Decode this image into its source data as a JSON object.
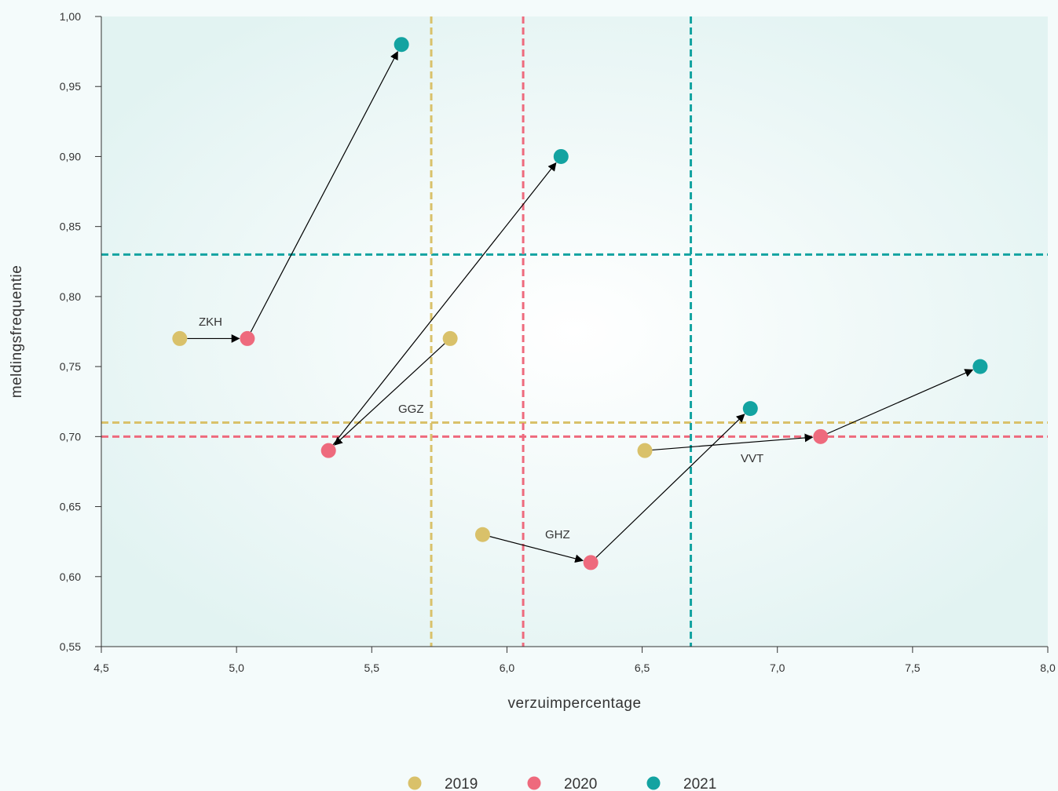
{
  "chart_data": {
    "type": "scatter",
    "xlabel": "verzuimpercentage",
    "ylabel": "meldingsfrequentie",
    "xlim": [
      4.5,
      8.0
    ],
    "ylim": [
      0.55,
      1.0
    ],
    "x_ticks": [
      "4,5",
      "5,0",
      "5,5",
      "6,0",
      "6,5",
      "7,0",
      "7,5",
      "8,0"
    ],
    "y_ticks": [
      "0,55",
      "0,60",
      "0,65",
      "0,70",
      "0,75",
      "0,80",
      "0,85",
      "0,90",
      "0,95",
      "1,00"
    ],
    "x_tick_values": [
      4.5,
      5.0,
      5.5,
      6.0,
      6.5,
      7.0,
      7.5,
      8.0
    ],
    "y_tick_values": [
      0.55,
      0.6,
      0.65,
      0.7,
      0.75,
      0.8,
      0.85,
      0.9,
      0.95,
      1.0
    ],
    "legend_position": "bottom",
    "series": [
      {
        "name": "2019",
        "color": "#d9c16a"
      },
      {
        "name": "2020",
        "color": "#ee6a7d"
      },
      {
        "name": "2021",
        "color": "#13a3a1"
      }
    ],
    "sectors": [
      {
        "label": "ZKH",
        "points": [
          [
            4.79,
            0.77
          ],
          [
            5.04,
            0.77
          ],
          [
            5.61,
            0.98
          ]
        ]
      },
      {
        "label": "GGZ",
        "points": [
          [
            5.79,
            0.77
          ],
          [
            5.34,
            0.69
          ],
          [
            6.2,
            0.9
          ]
        ]
      },
      {
        "label": "GHZ",
        "points": [
          [
            5.91,
            0.63
          ],
          [
            6.31,
            0.61
          ],
          [
            6.9,
            0.72
          ]
        ]
      },
      {
        "label": "VVT",
        "points": [
          [
            6.51,
            0.69
          ],
          [
            7.16,
            0.7
          ],
          [
            7.75,
            0.75
          ]
        ]
      }
    ],
    "reference_lines": {
      "vertical": [
        {
          "series": "2019",
          "x": 5.72
        },
        {
          "series": "2020",
          "x": 6.06
        },
        {
          "series": "2021",
          "x": 6.68
        }
      ],
      "horizontal": [
        {
          "series": "2019",
          "y": 0.71
        },
        {
          "series": "2020",
          "y": 0.7
        },
        {
          "series": "2021",
          "y": 0.83
        }
      ]
    }
  }
}
